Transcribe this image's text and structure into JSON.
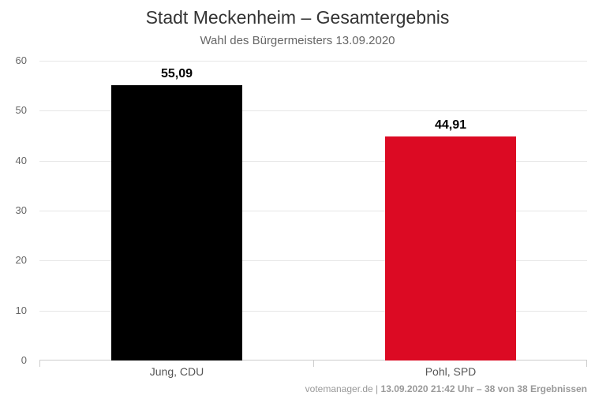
{
  "header": {
    "title": "Stadt Meckenheim – Gesamtergebnis",
    "subtitle": "Wahl des Bürgermeisters 13.09.2020"
  },
  "chart_data": {
    "type": "bar",
    "title": "Stadt Meckenheim – Gesamtergebnis",
    "subtitle": "Wahl des Bürgermeisters 13.09.2020",
    "categories": [
      "Jung, CDU",
      "Pohl, SPD"
    ],
    "values": [
      55.09,
      44.91
    ],
    "value_labels": [
      "55,09",
      "44,91"
    ],
    "bar_colors": [
      "#000000",
      "#dc0a23"
    ],
    "xlabel": "",
    "ylabel": "",
    "ylim": [
      0,
      60
    ],
    "yticks": [
      0,
      10,
      20,
      30,
      40,
      50,
      60
    ],
    "grid": true,
    "legend": false,
    "grid_color": "#e6e6e6",
    "axis_color": "#cccccc"
  },
  "footer": {
    "source": "votemanager.de",
    "separator": " | ",
    "status": "13.09.2020 21:42 Uhr – 38 von 38 Ergebnissen"
  }
}
